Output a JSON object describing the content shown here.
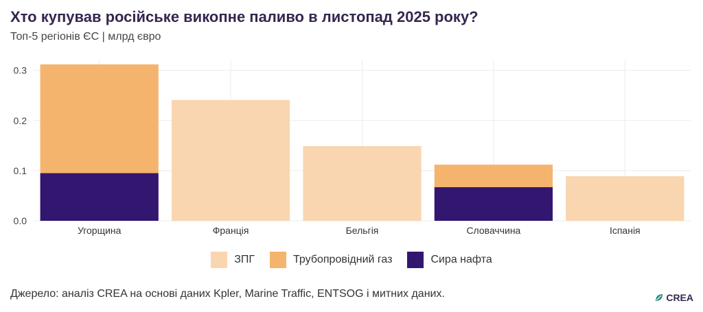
{
  "header": {
    "title": "Хто купував російське викопне паливо в листопад 2025 року?",
    "subtitle": "Топ-5 регіонів ЄС | млрд євро"
  },
  "chart_data": {
    "type": "bar",
    "stacked": true,
    "categories": [
      "Угорщина",
      "Франція",
      "Бельгія",
      "Словаччина",
      "Іспанія"
    ],
    "series": [
      {
        "name": "ЗПГ",
        "color": "#f9d6b0",
        "values": [
          0,
          0.241,
          0.149,
          0,
          0.089
        ]
      },
      {
        "name": "Трубопровідний газ",
        "color": "#f5b46e",
        "values": [
          0.217,
          0,
          0,
          0.045,
          0
        ]
      },
      {
        "name": "Сира нафта",
        "color": "#33166f",
        "values": [
          0.095,
          0,
          0,
          0.067,
          0
        ]
      }
    ],
    "stack_order": [
      "Сира нафта",
      "Трубопровідний газ",
      "ЗПГ"
    ],
    "ylim": [
      0,
      0.32
    ],
    "yticks": [
      "0.0",
      "0.1",
      "0.2",
      "0.3"
    ],
    "ytick_values": [
      0,
      0.1,
      0.2,
      0.3
    ],
    "grid": true,
    "legend_position": "bottom"
  },
  "footer": {
    "source": "Джерело: аналіз CREA на основі даних Kpler, Marine Traffic, ENTSOG і митних даних.",
    "logo_text": "CREA",
    "logo_icon": "crea-leaf-icon"
  }
}
